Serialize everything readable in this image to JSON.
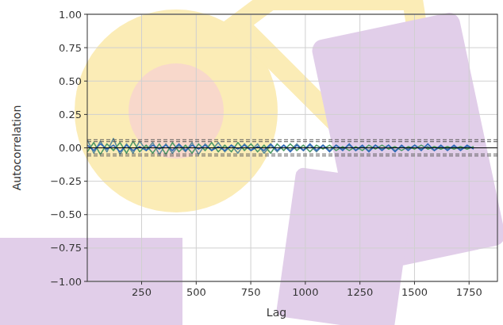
{
  "chart_data": {
    "type": "line",
    "x_label": "Lag",
    "y_label": "Autocorrelation",
    "xlim": [
      1,
      1880
    ],
    "ylim": [
      -1,
      1
    ],
    "xticks": [
      250,
      500,
      750,
      1000,
      1250,
      1500,
      1750
    ],
    "yticks": [
      {
        "value": -1,
        "label": "−1.00"
      },
      {
        "value": -0.75,
        "label": "−0.75"
      },
      {
        "value": -0.5,
        "label": "−0.50"
      },
      {
        "value": -0.25,
        "label": "−0.25"
      },
      {
        "value": 0,
        "label": "0.00"
      },
      {
        "value": 0.25,
        "label": "0.25"
      },
      {
        "value": 0.5,
        "label": "0.50"
      },
      {
        "value": 0.75,
        "label": "0.75"
      },
      {
        "value": 1,
        "label": "1.00"
      }
    ],
    "grid": true,
    "reference_lines": [
      {
        "value": 0.0607,
        "line_style": "dashed"
      },
      {
        "value": 0.0462,
        "line_style": "dashed"
      },
      {
        "value": 0,
        "line_style": "solid"
      },
      {
        "value": -0.0462,
        "line_style": "dashed"
      },
      {
        "value": -0.0607,
        "line_style": "dashed"
      }
    ],
    "x": [
      1,
      31,
      61,
      91,
      121,
      151,
      181,
      211,
      241,
      271,
      301,
      331,
      361,
      391,
      421,
      451,
      481,
      511,
      541,
      571,
      601,
      631,
      661,
      691,
      721,
      751,
      781,
      811,
      841,
      871,
      901,
      931,
      961,
      991,
      1021,
      1051,
      1081,
      1111,
      1141,
      1171,
      1201,
      1231,
      1261,
      1291,
      1321,
      1351,
      1381,
      1411,
      1441,
      1471,
      1501,
      1531,
      1561,
      1591,
      1621,
      1651,
      1681,
      1711,
      1741,
      1771
    ],
    "series": [
      {
        "color": "#5b8c9c",
        "values": [
          0.06,
          -0.04,
          0.05,
          -0.03,
          0.07,
          -0.05,
          0.03,
          -0.04,
          0.05,
          -0.02,
          0.04,
          -0.05,
          0.03,
          -0.04,
          0.02,
          -0.03,
          0.04,
          -0.05,
          0.03,
          -0.02,
          0.04,
          -0.03,
          0.02,
          -0.04,
          0.03,
          -0.02,
          0.03,
          -0.04,
          0.02,
          -0.03,
          0.02,
          -0.02,
          0.03,
          -0.02,
          0.02,
          -0.03,
          0.02,
          -0.02,
          0.02,
          -0.01,
          0.02,
          -0.02,
          0.01,
          -0.02,
          0.02,
          -0.01,
          0.02,
          -0.02,
          0.01,
          -0.01,
          0.02,
          -0.01,
          0.01,
          -0.02,
          0.01,
          -0.01,
          0.01,
          -0.01,
          0.01,
          0.0
        ]
      },
      {
        "color": "#4e9a66",
        "values": [
          -0.03,
          0.04,
          -0.05,
          0.03,
          -0.02,
          0.04,
          -0.04,
          0.05,
          -0.03,
          0.02,
          -0.04,
          0.03,
          -0.05,
          0.04,
          -0.03,
          0.02,
          -0.04,
          0.03,
          -0.02,
          0.04,
          -0.03,
          0.02,
          -0.03,
          0.04,
          -0.02,
          0.03,
          -0.03,
          0.02,
          -0.04,
          0.03,
          -0.02,
          0.03,
          -0.02,
          0.02,
          -0.03,
          0.02,
          -0.01,
          0.02,
          -0.02,
          0.01,
          -0.02,
          0.01,
          -0.02,
          0.02,
          -0.01,
          0.02,
          -0.01,
          0.01,
          -0.02,
          0.01,
          -0.01,
          0.02,
          -0.01,
          0.01,
          -0.01,
          0.01,
          -0.01,
          0.01,
          -0.01,
          0.01
        ]
      },
      {
        "color": "#2f68b8",
        "values": [
          0.02,
          -0.02,
          0.03,
          -0.01,
          0.02,
          -0.03,
          0.02,
          -0.02,
          0.01,
          -0.02,
          0.02,
          -0.01,
          0.02,
          -0.02,
          0.03,
          -0.02,
          0.02,
          -0.01,
          0.02,
          -0.02,
          0.01,
          -0.02,
          0.02,
          -0.01,
          0.02,
          -0.02,
          0.01,
          -0.02,
          0.03,
          -0.02,
          0.02,
          -0.03,
          0.02,
          -0.02,
          0.03,
          -0.02,
          0.02,
          -0.03,
          0.02,
          -0.02,
          0.03,
          -0.02,
          0.02,
          -0.03,
          0.02,
          -0.02,
          0.02,
          -0.03,
          0.02,
          -0.02,
          0.02,
          -0.02,
          0.03,
          -0.02,
          0.02,
          -0.02,
          0.02,
          -0.02,
          0.02,
          -0.01
        ]
      }
    ]
  }
}
